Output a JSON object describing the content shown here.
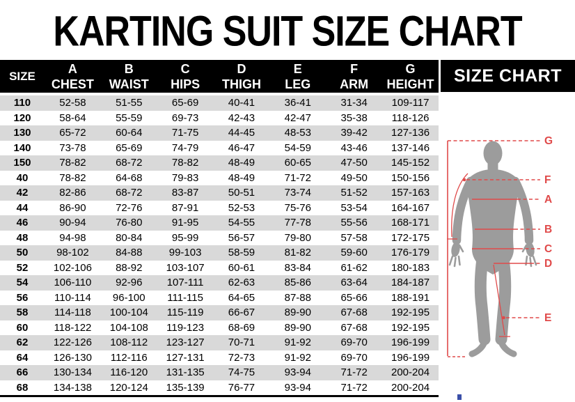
{
  "title": "KARTING SUIT SIZE CHART",
  "table": {
    "columns": [
      {
        "letter": "",
        "label": "SIZE"
      },
      {
        "letter": "A",
        "label": "CHEST"
      },
      {
        "letter": "B",
        "label": "WAIST"
      },
      {
        "letter": "C",
        "label": "HIPS"
      },
      {
        "letter": "D",
        "label": "THIGH"
      },
      {
        "letter": "E",
        "label": "LEG"
      },
      {
        "letter": "F",
        "label": "ARM"
      },
      {
        "letter": "G",
        "label": "HEIGHT"
      }
    ],
    "rows": [
      [
        "110",
        "52-58",
        "51-55",
        "65-69",
        "40-41",
        "36-41",
        "31-34",
        "109-117"
      ],
      [
        "120",
        "58-64",
        "55-59",
        "69-73",
        "42-43",
        "42-47",
        "35-38",
        "118-126"
      ],
      [
        "130",
        "65-72",
        "60-64",
        "71-75",
        "44-45",
        "48-53",
        "39-42",
        "127-136"
      ],
      [
        "140",
        "73-78",
        "65-69",
        "74-79",
        "46-47",
        "54-59",
        "43-46",
        "137-146"
      ],
      [
        "150",
        "78-82",
        "68-72",
        "78-82",
        "48-49",
        "60-65",
        "47-50",
        "145-152"
      ],
      [
        "40",
        "78-82",
        "64-68",
        "79-83",
        "48-49",
        "71-72",
        "49-50",
        "150-156"
      ],
      [
        "42",
        "82-86",
        "68-72",
        "83-87",
        "50-51",
        "73-74",
        "51-52",
        "157-163"
      ],
      [
        "44",
        "86-90",
        "72-76",
        "87-91",
        "52-53",
        "75-76",
        "53-54",
        "164-167"
      ],
      [
        "46",
        "90-94",
        "76-80",
        "91-95",
        "54-55",
        "77-78",
        "55-56",
        "168-171"
      ],
      [
        "48",
        "94-98",
        "80-84",
        "95-99",
        "56-57",
        "79-80",
        "57-58",
        "172-175"
      ],
      [
        "50",
        "98-102",
        "84-88",
        "99-103",
        "58-59",
        "81-82",
        "59-60",
        "176-179"
      ],
      [
        "52",
        "102-106",
        "88-92",
        "103-107",
        "60-61",
        "83-84",
        "61-62",
        "180-183"
      ],
      [
        "54",
        "106-110",
        "92-96",
        "107-111",
        "62-63",
        "85-86",
        "63-64",
        "184-187"
      ],
      [
        "56",
        "110-114",
        "96-100",
        "111-115",
        "64-65",
        "87-88",
        "65-66",
        "188-191"
      ],
      [
        "58",
        "114-118",
        "100-104",
        "115-119",
        "66-67",
        "89-90",
        "67-68",
        "192-195"
      ],
      [
        "60",
        "118-122",
        "104-108",
        "119-123",
        "68-69",
        "89-90",
        "67-68",
        "192-195"
      ],
      [
        "62",
        "122-126",
        "108-112",
        "123-127",
        "70-71",
        "91-92",
        "69-70",
        "196-199"
      ],
      [
        "64",
        "126-130",
        "112-116",
        "127-131",
        "72-73",
        "91-92",
        "69-70",
        "196-199"
      ],
      [
        "66",
        "130-134",
        "116-120",
        "131-135",
        "74-75",
        "93-94",
        "71-72",
        "200-204"
      ],
      [
        "68",
        "134-138",
        "120-124",
        "135-139",
        "76-77",
        "93-94",
        "71-72",
        "200-204"
      ]
    ]
  },
  "side_panel": {
    "heading": "SIZE CHART",
    "figure_labels": {
      "G": "G",
      "F": "F",
      "A": "A",
      "B": "B",
      "C": "C",
      "D": "D",
      "E": "E"
    }
  },
  "colors": {
    "header_bg": "#000000",
    "header_text": "#ffffff",
    "row_stripe": "#d9d9d9",
    "accent_red": "#e04a4a",
    "silhouette": "#9c9c9c",
    "artifact_blue": "#3a4fa8"
  }
}
